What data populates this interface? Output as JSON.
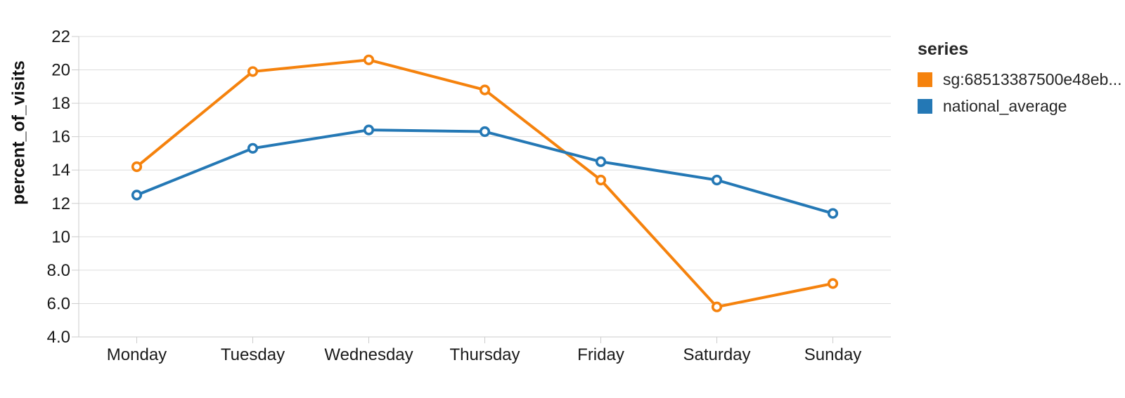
{
  "chart_data": {
    "type": "line",
    "title": "",
    "xlabel": "",
    "ylabel": "percent_of_visits",
    "categories": [
      "Monday",
      "Tuesday",
      "Wednesday",
      "Thursday",
      "Friday",
      "Saturday",
      "Sunday"
    ],
    "series": [
      {
        "name": "sg:68513387500e48eb...",
        "color": "#F5820D",
        "values": [
          14.2,
          19.9,
          20.6,
          18.8,
          13.4,
          5.8,
          7.2
        ]
      },
      {
        "name": "national_average",
        "color": "#2478B5",
        "values": [
          12.5,
          15.3,
          16.4,
          16.3,
          14.5,
          13.4,
          11.4
        ]
      }
    ],
    "ylim": [
      4,
      22
    ],
    "yticks": [
      4,
      6,
      8,
      10,
      12,
      14,
      16,
      18,
      20,
      22
    ],
    "ytick_labels": [
      "4.0",
      "6.0",
      "8.0",
      "10",
      "12",
      "14",
      "16",
      "18",
      "20",
      "22"
    ],
    "grid": true,
    "point_style": "open-circle",
    "legend": {
      "title": "series",
      "position": "right"
    }
  },
  "colors": {
    "grid": "#DDDDDD",
    "domain": "#CCCCCC",
    "text": "#1A1A1A"
  }
}
